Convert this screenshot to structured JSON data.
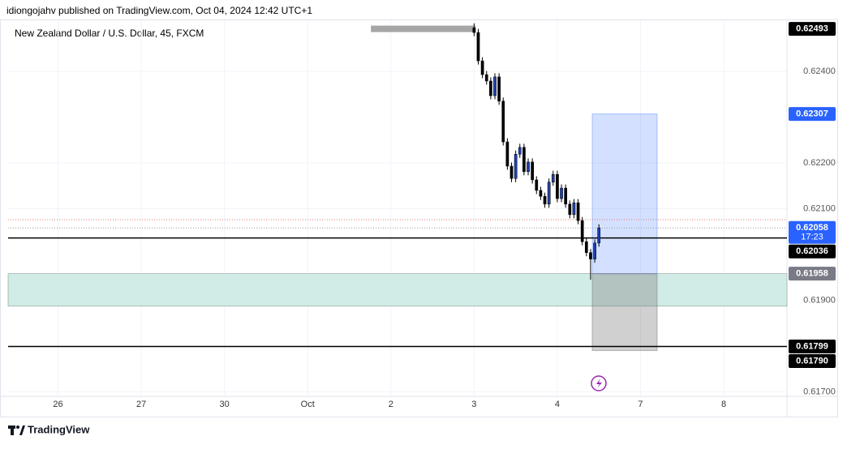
{
  "chart_data": {
    "type": "candlestick",
    "title": "idiongojahv published on TradingView.com, Oct 04, 2024 12:42 UTC+1",
    "subtitle": "New Zealand Dollar / U.S. Dollar, 45, FXCM",
    "footer": "TradingView",
    "xlim": [
      -0.6,
      8.76
    ],
    "xticks": [
      {
        "value": 0,
        "label": "26"
      },
      {
        "value": 1,
        "label": "27"
      },
      {
        "value": 2,
        "label": "30"
      },
      {
        "value": 3,
        "label": "Oct"
      },
      {
        "value": 4,
        "label": "2"
      },
      {
        "value": 5,
        "label": "3"
      },
      {
        "value": 6,
        "label": "4"
      },
      {
        "value": 7,
        "label": "7"
      },
      {
        "value": 8,
        "label": "8"
      }
    ],
    "ylim": [
      0.6169,
      0.6251
    ],
    "yticks": [
      {
        "value": 0.624,
        "label": "0.62400"
      },
      {
        "value": 0.622,
        "label": "0.62200"
      },
      {
        "value": 0.621,
        "label": "0.62100"
      },
      {
        "value": 0.619,
        "label": "0.61900"
      },
      {
        "value": 0.617,
        "label": "0.61700"
      }
    ],
    "grid": true,
    "up_color": "#1e3fae",
    "down_color": "#000000",
    "x": [
      5,
      5.05,
      5.1,
      5.15,
      5.2,
      5.25,
      5.3,
      5.35,
      5.4,
      5.45,
      5.5,
      5.55,
      5.6,
      5.65,
      5.7,
      5.75,
      5.8,
      5.85,
      5.9,
      5.95,
      6,
      6.05,
      6.1,
      6.15,
      6.2,
      6.25,
      6.3,
      6.35,
      6.4,
      6.45,
      6.5
    ],
    "open": [
      0.62495,
      0.62485,
      0.62423,
      0.62393,
      0.62379,
      0.62347,
      0.62388,
      0.62335,
      0.62246,
      0.62193,
      0.62166,
      0.62219,
      0.62234,
      0.62181,
      0.62202,
      0.62163,
      0.6214,
      0.62127,
      0.6211,
      0.62158,
      0.62175,
      0.62122,
      0.62145,
      0.6211,
      0.62087,
      0.62113,
      0.62074,
      0.62028,
      0.62004,
      0.6199,
      0.62025
    ],
    "high": [
      0.62505,
      0.62493,
      0.62431,
      0.62401,
      0.62387,
      0.62396,
      0.62396,
      0.62343,
      0.62254,
      0.62201,
      0.62227,
      0.62242,
      0.62242,
      0.6221,
      0.6221,
      0.62171,
      0.62148,
      0.62135,
      0.62166,
      0.62183,
      0.62183,
      0.62153,
      0.62153,
      0.62118,
      0.62121,
      0.62121,
      0.62082,
      0.62036,
      0.62012,
      0.62033,
      0.62066
    ],
    "low": [
      0.62477,
      0.62415,
      0.62385,
      0.62371,
      0.62339,
      0.62339,
      0.62327,
      0.62238,
      0.62185,
      0.62158,
      0.62158,
      0.62211,
      0.62173,
      0.62173,
      0.62155,
      0.62132,
      0.62119,
      0.62102,
      0.62102,
      0.6215,
      0.62114,
      0.62114,
      0.62102,
      0.62079,
      0.62079,
      0.62066,
      0.6202,
      0.61996,
      0.61945,
      0.61982,
      0.62017
    ],
    "close": [
      0.62485,
      0.62423,
      0.62393,
      0.62379,
      0.62347,
      0.62388,
      0.62335,
      0.62246,
      0.62193,
      0.62166,
      0.62219,
      0.62234,
      0.62181,
      0.62202,
      0.62163,
      0.6214,
      0.62127,
      0.6211,
      0.62158,
      0.62175,
      0.62122,
      0.62145,
      0.6211,
      0.62087,
      0.62113,
      0.62074,
      0.62028,
      0.62004,
      0.6199,
      0.62025,
      0.62058
    ],
    "zone": {
      "top": 0.61958,
      "bottom": 0.61887,
      "color": "#d1ece6"
    },
    "position": {
      "x": [
        6.42,
        7.2
      ],
      "entry": 0.61958,
      "target": 0.62307,
      "stop": 0.6179
    },
    "bar_drawing": {
      "x": [
        3.76,
        5.02
      ],
      "value": 0.62493,
      "color": "#a6a6a6"
    },
    "lines": [
      {
        "value": 0.62076,
        "color": "#e57373",
        "dash": "1 2"
      },
      {
        "value": 0.62058,
        "color": "#9e9e9e",
        "dash": "1 2"
      },
      {
        "value": 0.62036,
        "color": "#000000"
      },
      {
        "value": 0.61799,
        "color": "#000000"
      }
    ],
    "price_labels": [
      {
        "value": 0.62493,
        "bg": "#000000"
      },
      {
        "value": 0.62307,
        "bg": "#2962ff"
      },
      {
        "value": 0.62058,
        "bg": "#2962ff",
        "countdown": "17:23"
      },
      {
        "value": 0.62036,
        "bg": "#000000"
      },
      {
        "value": 0.61958,
        "bg": "#787b86"
      },
      {
        "value": 0.61799,
        "bg": "#000000"
      },
      {
        "value": 0.6179,
        "label": "0.61790",
        "bg": "#000000"
      }
    ]
  }
}
